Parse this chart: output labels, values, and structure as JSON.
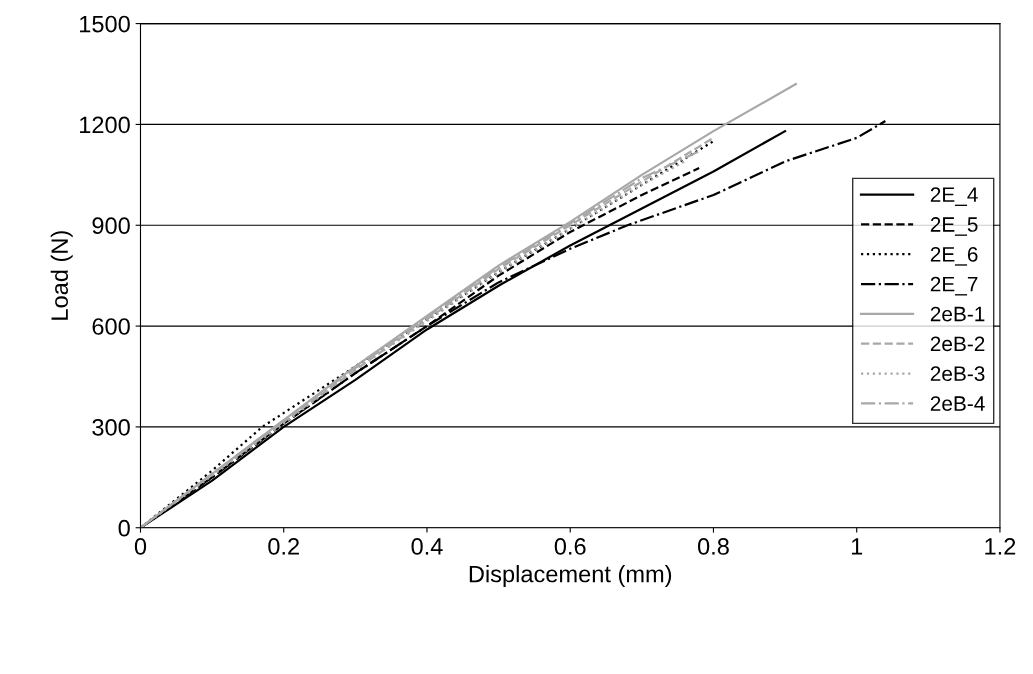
{
  "chart_data": {
    "type": "line",
    "xlabel": "Displacement (mm)",
    "ylabel": "Load (N)",
    "xlim": [
      0,
      1.2
    ],
    "ylim": [
      0,
      1500
    ],
    "xticks": [
      0,
      0.2,
      0.4,
      0.6,
      0.8,
      1,
      1.2
    ],
    "yticks": [
      0,
      300,
      600,
      900,
      1200,
      1500
    ],
    "grid": "y",
    "legend": "right",
    "marker": "none",
    "series": [
      {
        "name": "2E_4",
        "color": "#000000",
        "line_style": "solid",
        "x": [
          0,
          0.1,
          0.2,
          0.3,
          0.4,
          0.5,
          0.6,
          0.7,
          0.8,
          0.9
        ],
        "values": [
          0,
          140,
          300,
          440,
          590,
          720,
          840,
          950,
          1060,
          1180
        ]
      },
      {
        "name": "2E_5",
        "color": "#000000",
        "line_style": "dashed",
        "x": [
          0,
          0.1,
          0.2,
          0.3,
          0.4,
          0.5,
          0.6,
          0.7,
          0.78
        ],
        "values": [
          0,
          150,
          310,
          460,
          600,
          750,
          880,
          990,
          1070
        ]
      },
      {
        "name": "2E_6",
        "color": "#000000",
        "line_style": "dotted",
        "x": [
          0,
          0.1,
          0.17,
          0.3,
          0.4,
          0.5,
          0.6,
          0.7,
          0.8
        ],
        "values": [
          0,
          170,
          300,
          480,
          620,
          760,
          890,
          1020,
          1150
        ]
      },
      {
        "name": "2E_7",
        "color": "#000000",
        "line_style": "dashdot",
        "x": [
          0,
          0.1,
          0.2,
          0.3,
          0.4,
          0.5,
          0.6,
          0.68,
          0.8,
          0.9,
          1.0,
          1.04
        ],
        "values": [
          0,
          150,
          310,
          460,
          600,
          730,
          830,
          900,
          990,
          1090,
          1160,
          1210
        ]
      },
      {
        "name": "2eB-1",
        "color": "#a8a8a8",
        "line_style": "solid",
        "x": [
          0,
          0.1,
          0.2,
          0.3,
          0.4,
          0.5,
          0.6,
          0.7,
          0.8,
          0.915
        ],
        "values": [
          0,
          160,
          320,
          480,
          630,
          780,
          910,
          1050,
          1180,
          1320
        ]
      },
      {
        "name": "2eB-2",
        "color": "#a8a8a8",
        "line_style": "dashed",
        "x": [
          0,
          0.1,
          0.2,
          0.3,
          0.4,
          0.5,
          0.6,
          0.7,
          0.8
        ],
        "values": [
          0,
          160,
          315,
          470,
          620,
          770,
          900,
          1030,
          1160
        ]
      },
      {
        "name": "2eB-3",
        "color": "#a8a8a8",
        "line_style": "dotted",
        "x": [
          0,
          0.1,
          0.2,
          0.3,
          0.4,
          0.5,
          0.6,
          0.7,
          0.76
        ],
        "values": [
          0,
          155,
          310,
          470,
          615,
          760,
          890,
          1020,
          1090
        ]
      },
      {
        "name": "2eB-4",
        "color": "#a8a8a8",
        "line_style": "dashdot",
        "x": [
          0,
          0.1,
          0.2,
          0.3,
          0.4,
          0.5,
          0.6,
          0.7,
          0.78
        ],
        "values": [
          0,
          160,
          320,
          475,
          625,
          775,
          905,
          1040,
          1120
        ]
      }
    ]
  }
}
